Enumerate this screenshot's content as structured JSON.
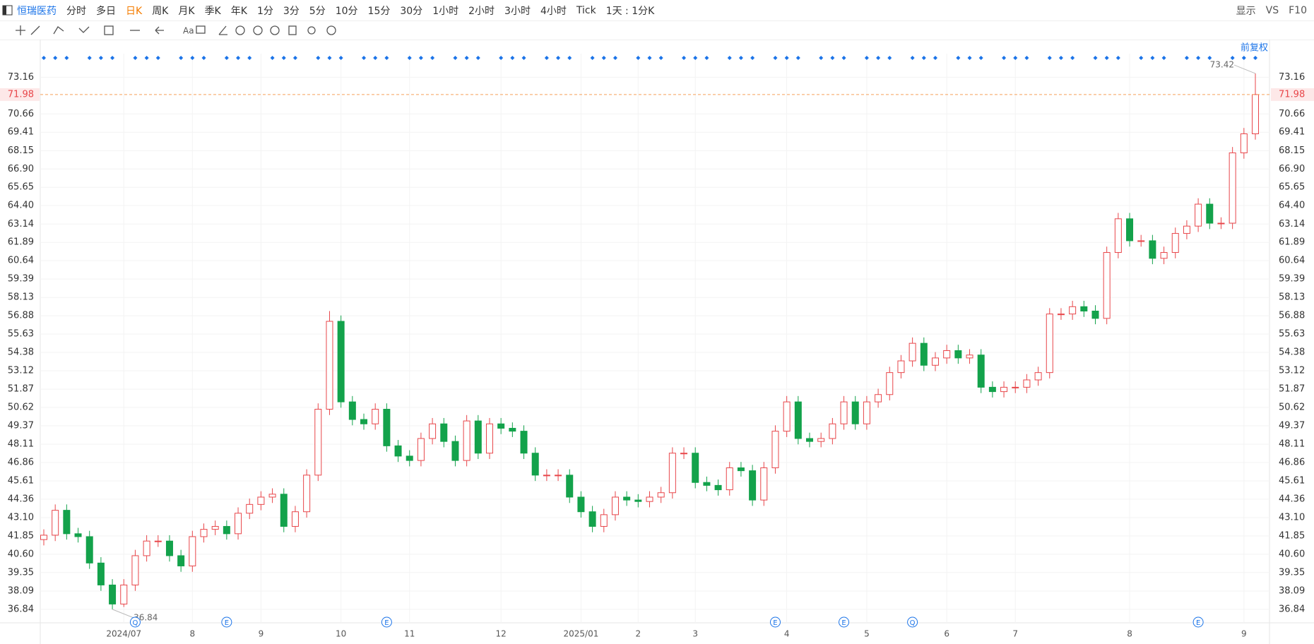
{
  "toolbar": {
    "stock": "恒瑞医药",
    "periods": [
      "分时",
      "多日",
      "日K",
      "周K",
      "月K",
      "季K",
      "年K",
      "1分",
      "3分",
      "5分",
      "10分",
      "15分",
      "30分",
      "1小时",
      "2小时",
      "3小时",
      "4小时",
      "Tick",
      "1天 : 1分K"
    ],
    "active": 2,
    "display": "显示",
    "vs": "VS",
    "f10": "F10",
    "adjust": "前复权"
  },
  "chart_data": {
    "type": "candlestick",
    "open": [
      41.6,
      41.9,
      43.6,
      42.0,
      41.8,
      40.0,
      38.5,
      37.2,
      38.5,
      40.5,
      41.5,
      41.5,
      40.5,
      39.8,
      41.8,
      42.3,
      42.5,
      42.0,
      43.4,
      44.0,
      44.5,
      44.7,
      42.5,
      43.5,
      46.0,
      50.5,
      56.5,
      51.0,
      49.8,
      49.5,
      50.5,
      48.0,
      47.3,
      47.0,
      48.5,
      49.5,
      48.3,
      47.0,
      49.7,
      47.5,
      49.5,
      49.2,
      49.0,
      47.5,
      46.0,
      46.0,
      46.0,
      44.5,
      43.5,
      42.5,
      43.3,
      44.5,
      44.3,
      44.2,
      44.5,
      44.8,
      47.5,
      47.5,
      45.5,
      45.3,
      45.0,
      46.5,
      46.3,
      44.3,
      46.5,
      49.0,
      51.0,
      48.5,
      48.3,
      48.5,
      49.5,
      51.0,
      49.5,
      51.0,
      51.5,
      53.0,
      53.8,
      55.0,
      53.5,
      54.0,
      54.5,
      54.0,
      54.2,
      52.0,
      51.7,
      52.0,
      52.0,
      52.5,
      53.0,
      57.0,
      57.0,
      57.5,
      57.2,
      56.7,
      61.2,
      63.5,
      62.0,
      62.0,
      60.8,
      61.2,
      62.5,
      63.0,
      64.5,
      63.2,
      63.2,
      68.0,
      69.3
    ],
    "high": [
      42.3,
      44.0,
      44.0,
      42.4,
      42.2,
      40.4,
      38.9,
      38.9,
      40.9,
      41.9,
      41.9,
      41.9,
      40.9,
      42.2,
      42.7,
      42.9,
      42.9,
      43.8,
      44.4,
      44.9,
      45.1,
      45.1,
      43.9,
      46.4,
      50.9,
      57.2,
      56.9,
      51.4,
      50.2,
      50.9,
      50.9,
      48.4,
      47.7,
      48.9,
      49.9,
      49.9,
      48.7,
      50.1,
      50.1,
      49.9,
      49.9,
      49.6,
      49.4,
      47.9,
      46.4,
      46.4,
      46.4,
      44.9,
      43.9,
      43.7,
      44.9,
      44.9,
      44.7,
      44.9,
      45.2,
      47.9,
      47.9,
      47.9,
      45.9,
      45.7,
      46.9,
      46.9,
      46.7,
      46.9,
      49.4,
      51.4,
      51.4,
      48.9,
      48.9,
      49.9,
      51.4,
      51.4,
      51.4,
      51.9,
      53.4,
      54.2,
      55.4,
      55.4,
      54.4,
      54.9,
      54.9,
      54.6,
      54.6,
      52.4,
      52.4,
      52.4,
      52.9,
      53.4,
      57.4,
      57.4,
      57.9,
      57.9,
      57.6,
      61.6,
      63.9,
      63.9,
      62.4,
      62.4,
      61.6,
      62.9,
      63.4,
      64.9,
      64.9,
      63.6,
      68.4,
      69.7,
      73.42
    ],
    "low": [
      41.2,
      41.5,
      41.6,
      41.4,
      39.6,
      38.1,
      36.84,
      37.0,
      38.1,
      40.1,
      41.1,
      40.1,
      39.4,
      39.4,
      41.4,
      41.9,
      41.6,
      41.6,
      43.0,
      43.6,
      44.1,
      42.1,
      42.1,
      43.1,
      45.6,
      50.1,
      50.6,
      49.4,
      49.1,
      49.1,
      47.6,
      46.9,
      46.6,
      46.6,
      48.1,
      47.9,
      46.6,
      46.6,
      47.1,
      47.1,
      48.8,
      48.6,
      47.1,
      45.6,
      45.6,
      45.6,
      44.1,
      43.1,
      42.1,
      42.1,
      42.9,
      43.9,
      43.8,
      43.8,
      44.1,
      44.4,
      47.1,
      45.1,
      44.9,
      44.6,
      44.6,
      45.9,
      43.9,
      43.9,
      46.1,
      48.6,
      48.1,
      47.9,
      47.9,
      48.1,
      49.1,
      49.1,
      49.1,
      50.6,
      51.1,
      52.6,
      53.4,
      53.1,
      53.1,
      53.6,
      53.6,
      53.6,
      51.6,
      51.3,
      51.3,
      51.6,
      51.6,
      52.1,
      52.6,
      56.6,
      56.6,
      56.8,
      56.3,
      56.3,
      60.8,
      61.6,
      61.6,
      60.4,
      60.4,
      60.8,
      62.1,
      62.6,
      62.8,
      62.8,
      62.8,
      67.6,
      68.9
    ],
    "close": [
      41.9,
      43.6,
      42.0,
      41.8,
      40.0,
      38.5,
      37.2,
      38.5,
      40.5,
      41.5,
      41.5,
      40.5,
      39.8,
      41.8,
      42.3,
      42.5,
      42.0,
      43.4,
      44.0,
      44.5,
      44.7,
      42.5,
      43.5,
      46.0,
      50.5,
      56.5,
      51.0,
      49.8,
      49.5,
      50.5,
      48.0,
      47.3,
      47.0,
      48.5,
      49.5,
      48.3,
      47.0,
      49.7,
      47.5,
      49.5,
      49.2,
      49.0,
      47.5,
      46.0,
      46.0,
      46.0,
      44.5,
      43.5,
      42.5,
      43.3,
      44.5,
      44.3,
      44.2,
      44.5,
      44.8,
      47.5,
      47.5,
      45.5,
      45.3,
      45.0,
      46.5,
      46.3,
      44.3,
      46.5,
      49.0,
      51.0,
      48.5,
      48.3,
      48.5,
      49.5,
      51.0,
      49.5,
      51.0,
      51.5,
      53.0,
      53.8,
      55.0,
      53.5,
      54.0,
      54.5,
      54.0,
      54.2,
      52.0,
      51.7,
      52.0,
      52.0,
      52.5,
      53.0,
      57.0,
      57.0,
      57.5,
      57.2,
      56.7,
      61.2,
      63.5,
      62.0,
      62.0,
      60.8,
      61.2,
      62.5,
      63.0,
      64.5,
      63.2,
      63.2,
      68.0,
      69.3,
      71.98
    ],
    "up_color": "#e8464a",
    "down_color": "#13a24b",
    "ylim": [
      36.4,
      74.0
    ],
    "yticks": [
      36.84,
      38.09,
      39.35,
      {
        "value": 40.6,
        "label": "40.60"
      },
      41.85,
      {
        "value": 43.1,
        "label": "43.10"
      },
      44.36,
      45.61,
      46.86,
      48.11,
      49.37,
      50.62,
      51.87,
      53.12,
      54.38,
      55.63,
      56.88,
      58.13,
      59.39,
      60.64,
      61.89,
      63.14,
      {
        "value": 64.4,
        "label": "64.40"
      },
      65.65,
      {
        "value": 66.9,
        "label": "66.90"
      },
      68.15,
      69.41,
      70.66,
      73.16
    ],
    "price_line": 71.98,
    "xticks": [
      {
        "value": 7,
        "label": "2024/07"
      },
      {
        "value": 13,
        "label": "8"
      },
      {
        "value": 19,
        "label": "9"
      },
      {
        "value": 26,
        "label": "10"
      },
      {
        "value": 32,
        "label": "11"
      },
      {
        "value": 40,
        "label": "12"
      },
      {
        "value": 47,
        "label": "2025/01"
      },
      {
        "value": 52,
        "label": "2"
      },
      {
        "value": 57,
        "label": "3"
      },
      {
        "value": 65,
        "label": "4"
      },
      {
        "value": 72,
        "label": "5"
      },
      {
        "value": 79,
        "label": "6"
      },
      {
        "value": 85,
        "label": "7"
      },
      {
        "value": 95,
        "label": "8"
      },
      {
        "value": 105,
        "label": "9"
      }
    ],
    "events": [
      {
        "index": 8,
        "label": "Q"
      },
      {
        "index": 16,
        "label": "E"
      },
      {
        "index": 30,
        "label": "E"
      },
      {
        "index": 64,
        "label": "E"
      },
      {
        "index": 70,
        "label": "E"
      },
      {
        "index": 76,
        "label": "Q"
      },
      {
        "index": 101,
        "label": "E"
      }
    ],
    "annotations": [
      {
        "index": 106,
        "value": 73.42
      },
      {
        "index": 6,
        "value": 36.84
      }
    ],
    "grid": true
  }
}
